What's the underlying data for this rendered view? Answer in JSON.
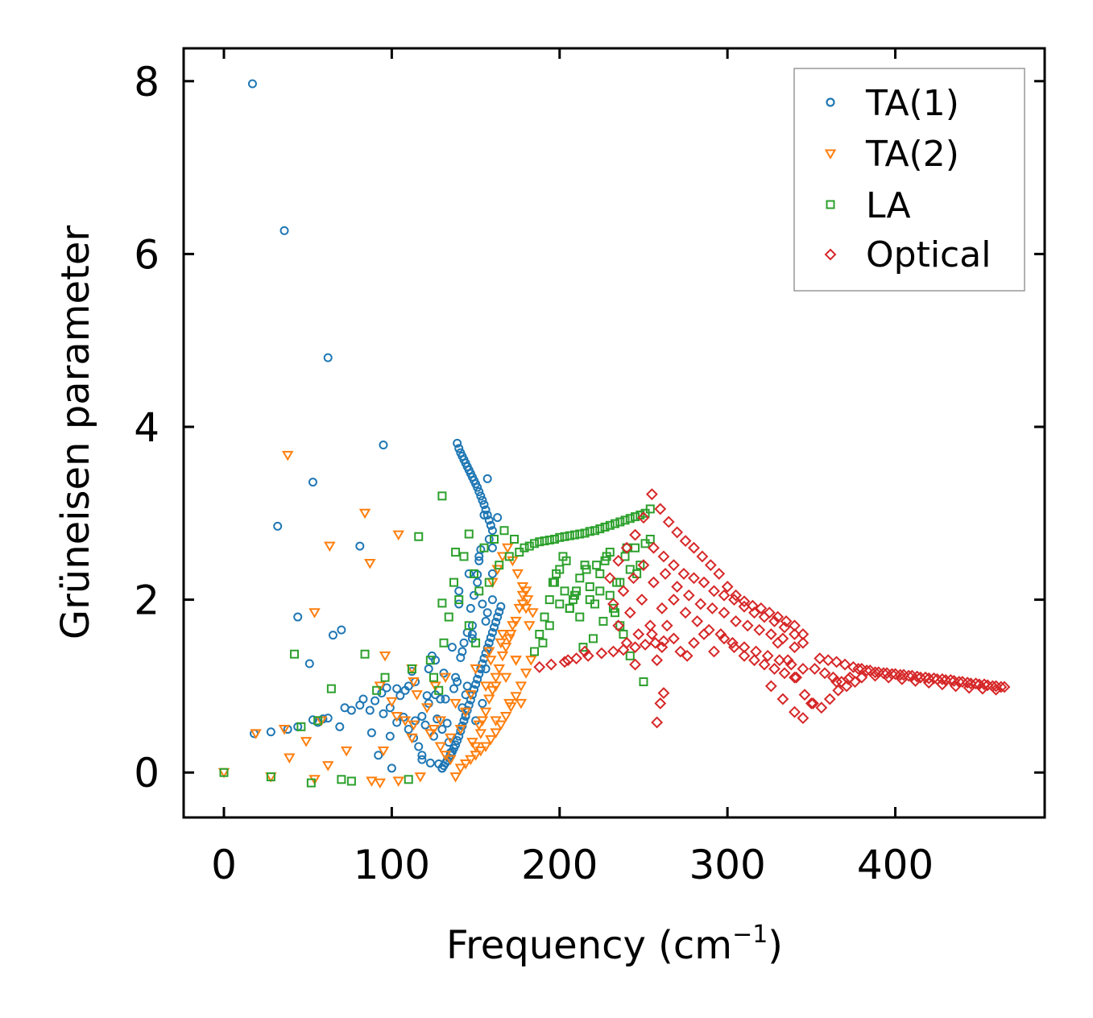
{
  "chart_data": {
    "type": "scatter",
    "title": "",
    "xlabel": "Frequency (cm",
    "xlabel_sup": "−1",
    "xlabel_end": ")",
    "ylabel": "Grüneisen parameter",
    "xlim": [
      -24,
      489
    ],
    "ylim": [
      -0.52,
      8.38
    ],
    "xticks": [
      0,
      100,
      200,
      300,
      400
    ],
    "yticks": [
      0,
      2,
      4,
      6,
      8
    ],
    "legend_position": "top-right",
    "series": [
      {
        "name": "TA(1)",
        "marker": "circle",
        "color": "#1f77b4",
        "x": [
          17,
          36,
          62,
          95,
          53,
          32,
          81,
          44,
          70,
          65,
          51,
          59,
          28,
          18,
          38,
          44,
          53,
          56,
          62,
          69,
          72,
          76,
          81,
          83,
          87,
          88,
          90,
          92,
          94,
          95,
          97,
          99,
          100,
          103,
          105,
          107,
          110,
          112,
          114,
          116,
          118,
          121,
          123,
          125,
          127,
          129,
          131,
          133,
          135,
          137,
          139,
          141,
          143,
          145,
          147,
          149,
          151,
          153,
          155,
          157,
          99,
          103,
          108,
          113,
          118,
          122,
          126,
          130,
          110,
          114,
          118,
          122,
          126,
          130,
          134,
          138,
          142,
          120,
          124,
          128,
          132,
          136,
          140,
          144,
          148,
          152,
          156,
          160,
          139,
          140,
          141,
          142,
          143,
          144,
          145,
          146,
          147,
          148,
          149,
          150,
          151,
          152,
          153,
          154,
          155,
          156,
          157,
          158,
          159,
          160,
          130,
          131,
          132,
          133,
          134,
          135,
          136,
          137,
          138,
          139,
          140,
          141,
          142,
          143,
          144,
          145,
          146,
          147,
          148,
          149,
          150,
          151,
          152,
          153,
          154,
          155,
          156,
          157,
          158,
          159,
          160,
          161,
          162,
          163,
          164,
          165,
          140,
          142,
          144,
          146,
          148,
          150,
          152,
          154,
          156,
          158,
          160,
          145,
          148,
          151,
          154,
          157,
          160,
          163
        ],
        "y": [
          7.97,
          6.27,
          4.8,
          3.79,
          3.36,
          2.85,
          2.62,
          1.8,
          1.65,
          1.59,
          1.26,
          0.62,
          0.47,
          0.45,
          0.5,
          0.53,
          0.61,
          0.58,
          0.63,
          0.53,
          0.75,
          0.72,
          0.78,
          0.85,
          0.72,
          0.46,
          0.83,
          0.2,
          0.92,
          0.68,
          0.98,
          0.42,
          0.05,
          0.97,
          0.89,
          0.64,
          0.5,
          1.17,
          1.05,
          0.3,
          0.65,
          0.89,
          0.11,
          0.42,
          0.62,
          0.85,
          1.15,
          0.57,
          0.23,
          0.97,
          1.05,
          1.33,
          1.5,
          1.62,
          1.9,
          2.05,
          2.29,
          2.58,
          2.98,
          3.4,
          0.75,
          0.58,
          0.95,
          0.4,
          0.15,
          0.8,
          1.3,
          0.5,
          1.0,
          0.6,
          0.2,
          1.2,
          0.9,
          0.05,
          0.35,
          1.1,
          0.75,
          0.55,
          1.35,
          0.1,
          0.85,
          1.45,
          1.95,
          0.65,
          1.6,
          2.45,
          1.75,
          2.3,
          3.81,
          3.75,
          3.7,
          3.66,
          3.62,
          3.58,
          3.54,
          3.5,
          3.46,
          3.42,
          3.38,
          3.34,
          3.3,
          3.25,
          3.2,
          3.15,
          3.1,
          3.04,
          2.98,
          2.92,
          2.86,
          2.8,
          0.05,
          0.08,
          0.11,
          0.14,
          0.17,
          0.2,
          0.24,
          0.28,
          0.32,
          0.37,
          0.42,
          0.48,
          0.54,
          0.6,
          0.66,
          0.72,
          0.78,
          0.84,
          0.9,
          0.96,
          1.02,
          1.08,
          1.14,
          1.2,
          1.26,
          1.32,
          1.38,
          1.44,
          1.5,
          1.56,
          1.62,
          1.68,
          1.74,
          1.8,
          1.86,
          1.92,
          2.1,
          1.4,
          0.9,
          2.3,
          1.7,
          0.6,
          2.5,
          1.95,
          1.2,
          2.7,
          2.0,
          1.0,
          1.55,
          2.2,
          0.8,
          1.85,
          2.6,
          2.95
        ]
      },
      {
        "name": "TA(2)",
        "marker": "triangle-down",
        "color": "#ff7f0e",
        "x": [
          0,
          19,
          28,
          38,
          39,
          49,
          54,
          54,
          58,
          63,
          73,
          84,
          87,
          93,
          95,
          103,
          104,
          112,
          113,
          113,
          123,
          62,
          36,
          96,
          115,
          88,
          93,
          100,
          104,
          108,
          112,
          117,
          121,
          125,
          129,
          132,
          135,
          138,
          141,
          144,
          147,
          150,
          153,
          156,
          159,
          162,
          165,
          168,
          171,
          174,
          177,
          180,
          183,
          126,
          129,
          132,
          135,
          138,
          141,
          144,
          147,
          150,
          153,
          156,
          159,
          162,
          165,
          168,
          171,
          174,
          177,
          180,
          150,
          154,
          158,
          162,
          166,
          170,
          174,
          178,
          148,
          152,
          156,
          160,
          164,
          168,
          172,
          176,
          180,
          160,
          163,
          166,
          169,
          172,
          175,
          178,
          181,
          184,
          158,
          162,
          166,
          170,
          174,
          178,
          182
        ],
        "y": [
          0.0,
          0.45,
          -0.05,
          3.67,
          0.17,
          0.36,
          1.85,
          -0.08,
          0.6,
          2.62,
          0.25,
          3.0,
          2.42,
          1.0,
          0.25,
          0.65,
          2.75,
          1.2,
          0.55,
          1.05,
          0.45,
          0.08,
          0.5,
          1.35,
          0.9,
          -0.1,
          -0.12,
          0.82,
          -0.1,
          0.6,
          0.4,
          -0.05,
          0.75,
          0.5,
          0.3,
          1.1,
          0.15,
          -0.05,
          0.05,
          0.1,
          0.15,
          0.2,
          0.25,
          0.3,
          0.38,
          0.46,
          0.55,
          0.65,
          0.76,
          0.88,
          1.0,
          1.15,
          1.3,
          1.0,
          0.6,
          0.2,
          0.4,
          0.8,
          0.5,
          0.7,
          0.9,
          1.2,
          0.45,
          1.0,
          1.3,
          0.6,
          1.5,
          1.1,
          1.6,
          1.3,
          0.8,
          1.9,
          0.3,
          0.6,
          0.85,
          1.1,
          1.35,
          1.55,
          1.75,
          1.95,
          0.35,
          0.55,
          0.7,
          0.95,
          1.2,
          1.45,
          1.7,
          1.9,
          2.1,
          2.2,
          2.35,
          2.5,
          2.6,
          2.45,
          2.3,
          2.15,
          2.0,
          1.85,
          1.4,
          1.0,
          1.6,
          0.8,
          1.3,
          2.05,
          1.7
        ]
      },
      {
        "name": "LA",
        "marker": "square",
        "color": "#2ca02c",
        "x": [
          0,
          28,
          42,
          46,
          52,
          56,
          64,
          70,
          76,
          84,
          91,
          96,
          110,
          112,
          116,
          130,
          130,
          138,
          146,
          150,
          123,
          125,
          128,
          131,
          134,
          137,
          140,
          143,
          146,
          149,
          152,
          155,
          158,
          161,
          164,
          167,
          170,
          173,
          176,
          179,
          182,
          185,
          188,
          191,
          194,
          197,
          200,
          203,
          206,
          209,
          212,
          215,
          218,
          221,
          224,
          227,
          230,
          233,
          236,
          239,
          242,
          245,
          248,
          251,
          254,
          185,
          188,
          191,
          194,
          197,
          200,
          203,
          206,
          209,
          212,
          215,
          218,
          221,
          224,
          227,
          230,
          233,
          236,
          239,
          242,
          245,
          248,
          251,
          254,
          190,
          194,
          198,
          202,
          206,
          210,
          214,
          218,
          222,
          226,
          230,
          234,
          238,
          242,
          246,
          250,
          196,
          200,
          204,
          208,
          212,
          216,
          220,
          224,
          228,
          232,
          236,
          240
        ],
        "y": [
          0.0,
          -0.05,
          1.37,
          0.53,
          -0.12,
          0.6,
          0.97,
          -0.08,
          -0.1,
          1.37,
          0.95,
          1.1,
          -0.08,
          1.2,
          2.73,
          3.2,
          1.96,
          2.55,
          2.76,
          1.5,
          1.3,
          1.1,
          0.95,
          1.5,
          1.8,
          2.2,
          2.0,
          2.5,
          1.7,
          2.3,
          2.1,
          2.6,
          2.2,
          2.7,
          2.4,
          2.8,
          2.5,
          2.7,
          2.55,
          2.6,
          2.62,
          2.65,
          2.67,
          2.68,
          2.69,
          2.7,
          2.72,
          2.73,
          2.74,
          2.75,
          2.76,
          2.77,
          2.79,
          2.8,
          2.82,
          2.84,
          2.86,
          2.88,
          2.9,
          2.92,
          2.94,
          2.96,
          2.98,
          3.0,
          3.05,
          1.4,
          1.6,
          1.8,
          2.0,
          2.2,
          2.35,
          2.1,
          1.9,
          2.05,
          2.25,
          2.4,
          2.15,
          1.95,
          2.3,
          2.45,
          2.05,
          1.85,
          2.2,
          2.5,
          2.35,
          2.6,
          2.4,
          2.65,
          2.7,
          1.5,
          1.7,
          2.3,
          2.5,
          1.9,
          2.1,
          1.45,
          2.0,
          2.4,
          1.75,
          2.55,
          2.2,
          1.6,
          1.35,
          2.3,
          1.05,
          2.2,
          1.95,
          2.45,
          2.0,
          1.8,
          2.35,
          1.55,
          2.1,
          2.5,
          1.9,
          1.7,
          2.6
        ]
      },
      {
        "name": "Optical",
        "marker": "diamond",
        "color": "#d62728",
        "x": [
          230,
          235,
          240,
          245,
          250,
          255,
          260,
          265,
          270,
          275,
          280,
          285,
          290,
          295,
          300,
          305,
          310,
          315,
          320,
          325,
          330,
          335,
          340,
          345,
          232,
          238,
          244,
          250,
          256,
          262,
          268,
          274,
          280,
          286,
          292,
          298,
          304,
          310,
          316,
          322,
          328,
          334,
          340,
          345,
          235,
          242,
          249,
          256,
          263,
          270,
          277,
          284,
          291,
          298,
          305,
          312,
          319,
          326,
          333,
          340,
          240,
          247,
          254,
          261,
          268,
          275,
          282,
          289,
          296,
          303,
          310,
          317,
          324,
          331,
          338,
          345,
          255,
          258,
          261,
          264,
          268,
          272,
          276,
          280,
          286,
          292,
          298,
          304,
          310,
          316,
          322,
          328,
          334,
          340,
          188,
          195,
          203,
          210,
          217,
          225,
          232,
          238,
          245,
          251,
          257,
          262,
          326,
          333,
          340,
          345,
          350,
          355,
          360,
          365,
          370,
          375,
          380,
          385,
          390,
          395,
          400,
          405,
          410,
          415,
          420,
          425,
          430,
          435,
          440,
          445,
          450,
          455,
          460,
          465,
          352,
          358,
          363,
          368,
          373,
          378,
          383,
          388,
          393,
          398,
          403,
          408,
          413,
          418,
          423,
          428,
          433,
          438,
          443,
          448,
          453,
          458,
          463,
          365,
          372,
          380,
          388,
          396,
          404,
          412,
          420,
          428,
          436,
          444,
          452,
          460,
          330,
          336,
          341,
          346,
          351,
          356,
          361,
          366,
          371,
          376
        ],
        "y": [
          2.25,
          2.45,
          2.6,
          2.75,
          2.95,
          3.22,
          3.05,
          2.9,
          2.78,
          2.68,
          2.6,
          2.5,
          2.4,
          2.3,
          2.15,
          2.05,
          1.98,
          1.93,
          1.9,
          1.85,
          1.8,
          1.75,
          1.7,
          1.6,
          1.95,
          2.1,
          2.25,
          2.4,
          2.6,
          2.5,
          2.4,
          2.3,
          2.25,
          2.2,
          2.1,
          2.05,
          2.0,
          1.92,
          1.85,
          1.8,
          1.75,
          1.68,
          1.6,
          1.5,
          1.7,
          1.85,
          2.0,
          2.2,
          2.3,
          2.15,
          2.05,
          1.95,
          1.9,
          1.85,
          1.75,
          1.7,
          1.65,
          1.6,
          1.55,
          1.45,
          1.5,
          1.6,
          1.7,
          1.9,
          2.0,
          1.85,
          1.75,
          1.65,
          1.6,
          1.5,
          1.45,
          1.4,
          1.35,
          1.3,
          1.25,
          1.2,
          1.6,
          1.3,
          1.45,
          1.7,
          1.55,
          1.4,
          1.35,
          1.5,
          1.6,
          1.4,
          1.55,
          1.45,
          1.35,
          1.3,
          1.25,
          1.2,
          1.15,
          1.1,
          1.22,
          1.25,
          1.28,
          1.32,
          1.35,
          1.38,
          1.4,
          1.42,
          1.45,
          1.48,
          1.5,
          1.52,
          1.0,
          0.85,
          0.7,
          0.63,
          0.8,
          1.32,
          1.3,
          1.28,
          1.25,
          1.22,
          1.2,
          1.18,
          1.16,
          1.15,
          1.14,
          1.13,
          1.12,
          1.1,
          1.09,
          1.08,
          1.07,
          1.06,
          1.05,
          1.03,
          1.02,
          1.01,
          1.0,
          0.99,
          1.2,
          1.15,
          1.1,
          1.05,
          1.1,
          1.2,
          1.18,
          1.16,
          1.15,
          1.14,
          1.13,
          1.12,
          1.11,
          1.1,
          1.09,
          1.08,
          1.07,
          1.05,
          1.04,
          1.03,
          1.02,
          1.0,
          0.99,
          1.05,
          1.08,
          1.1,
          1.12,
          1.1,
          1.08,
          1.06,
          1.04,
          1.02,
          1.0,
          0.98,
          0.97,
          0.96,
          1.5,
          1.3,
          1.1,
          0.9,
          0.8,
          0.75,
          0.85,
          0.95,
          1.0,
          1.05
        ]
      }
    ],
    "extra_points": [
      {
        "series": "Optical",
        "x": 258,
        "y": 0.58
      },
      {
        "series": "Optical",
        "x": 260,
        "y": 0.8
      },
      {
        "series": "Optical",
        "x": 262,
        "y": 0.92
      },
      {
        "series": "Optical",
        "x": 245,
        "y": 1.25
      },
      {
        "series": "Optical",
        "x": 215,
        "y": 1.4
      },
      {
        "series": "Optical",
        "x": 205,
        "y": 1.3
      }
    ]
  }
}
